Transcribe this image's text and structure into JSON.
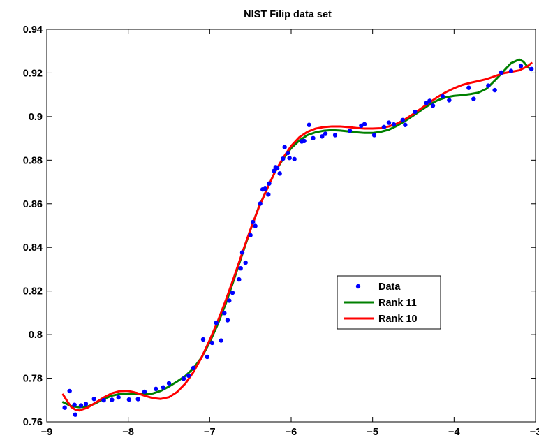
{
  "chart_data": {
    "type": "scatter",
    "title": "NIST Filip data set",
    "xlabel": "",
    "ylabel": "",
    "xlim": [
      -9,
      -3
    ],
    "ylim": [
      0.76,
      0.94
    ],
    "xticks": [
      -9,
      -8,
      -7,
      -6,
      -5,
      -4,
      -3
    ],
    "xtick_labels": [
      "−9",
      "−8",
      "−7",
      "−6",
      "−5",
      "−4",
      "−3"
    ],
    "yticks": [
      0.76,
      0.78,
      0.8,
      0.82,
      0.84,
      0.86,
      0.88,
      0.9,
      0.92,
      0.94
    ],
    "ytick_labels": [
      "0.76",
      "0.78",
      "0.8",
      "0.82",
      "0.84",
      "0.86",
      "0.88",
      "0.9",
      "0.92",
      "0.94"
    ],
    "grid": false,
    "legend_position": "center-right",
    "series": [
      {
        "name": "Data",
        "kind": "scatter",
        "color": "#0000ff",
        "points": [
          [
            -8.78,
            0.7665
          ],
          [
            -8.72,
            0.7741
          ],
          [
            -8.66,
            0.7678
          ],
          [
            -8.65,
            0.7633
          ],
          [
            -8.58,
            0.7675
          ],
          [
            -8.52,
            0.7682
          ],
          [
            -8.42,
            0.7705
          ],
          [
            -8.3,
            0.7699
          ],
          [
            -8.2,
            0.7701
          ],
          [
            -8.12,
            0.7712
          ],
          [
            -7.99,
            0.7702
          ],
          [
            -7.88,
            0.7704
          ],
          [
            -7.8,
            0.7738
          ],
          [
            -7.66,
            0.7751
          ],
          [
            -7.57,
            0.7758
          ],
          [
            -7.5,
            0.7777
          ],
          [
            -7.32,
            0.7798
          ],
          [
            -7.26,
            0.7812
          ],
          [
            -7.2,
            0.7847
          ],
          [
            -7.08,
            0.7978
          ],
          [
            -7.03,
            0.7898
          ],
          [
            -6.97,
            0.7962
          ],
          [
            -6.92,
            0.8054
          ],
          [
            -6.86,
            0.7973
          ],
          [
            -6.82,
            0.8099
          ],
          [
            -6.78,
            0.8066
          ],
          [
            -6.76,
            0.8156
          ],
          [
            -6.72,
            0.8192
          ],
          [
            -6.64,
            0.8253
          ],
          [
            -6.62,
            0.8304
          ],
          [
            -6.6,
            0.8377
          ],
          [
            -6.56,
            0.833
          ],
          [
            -6.5,
            0.8456
          ],
          [
            -6.47,
            0.8516
          ],
          [
            -6.44,
            0.8498
          ],
          [
            -6.38,
            0.8601
          ],
          [
            -6.35,
            0.8666
          ],
          [
            -6.32,
            0.8669
          ],
          [
            -6.28,
            0.8643
          ],
          [
            -6.27,
            0.8693
          ],
          [
            -6.21,
            0.8751
          ],
          [
            -6.19,
            0.8768
          ],
          [
            -6.17,
            0.8763
          ],
          [
            -6.14,
            0.8739
          ],
          [
            -6.1,
            0.8807
          ],
          [
            -6.08,
            0.886
          ],
          [
            -6.04,
            0.8833
          ],
          [
            -6.02,
            0.881
          ],
          [
            -5.96,
            0.8805
          ],
          [
            -5.87,
            0.8886
          ],
          [
            -5.84,
            0.8888
          ],
          [
            -5.78,
            0.8962
          ],
          [
            -5.73,
            0.8901
          ],
          [
            -5.62,
            0.8909
          ],
          [
            -5.58,
            0.8921
          ],
          [
            -5.46,
            0.8915
          ],
          [
            -5.28,
            0.8935
          ],
          [
            -5.14,
            0.8958
          ],
          [
            -5.1,
            0.8965
          ],
          [
            -4.98,
            0.8915
          ],
          [
            -4.86,
            0.8952
          ],
          [
            -4.8,
            0.8972
          ],
          [
            -4.74,
            0.8964
          ],
          [
            -4.63,
            0.8984
          ],
          [
            -4.6,
            0.8962
          ],
          [
            -4.48,
            0.9022
          ],
          [
            -4.34,
            0.9062
          ],
          [
            -4.3,
            0.9072
          ],
          [
            -4.26,
            0.905
          ],
          [
            -4.14,
            0.9092
          ],
          [
            -4.06,
            0.9075
          ],
          [
            -3.82,
            0.9132
          ],
          [
            -3.76,
            0.9081
          ],
          [
            -3.58,
            0.9142
          ],
          [
            -3.5,
            0.9121
          ],
          [
            -3.42,
            0.9202
          ],
          [
            -3.3,
            0.9209
          ],
          [
            -3.18,
            0.9232
          ],
          [
            -3.05,
            0.9218
          ]
        ]
      },
      {
        "name": "Rank 11",
        "kind": "line",
        "color": "#008000",
        "points": [
          [
            -8.8,
            0.769
          ],
          [
            -8.7,
            0.7672
          ],
          [
            -8.6,
            0.7667
          ],
          [
            -8.5,
            0.767
          ],
          [
            -8.4,
            0.7685
          ],
          [
            -8.3,
            0.7705
          ],
          [
            -8.2,
            0.772
          ],
          [
            -8.1,
            0.7728
          ],
          [
            -8.0,
            0.773
          ],
          [
            -7.9,
            0.7728
          ],
          [
            -7.8,
            0.7727
          ],
          [
            -7.7,
            0.773
          ],
          [
            -7.6,
            0.7742
          ],
          [
            -7.5,
            0.7762
          ],
          [
            -7.4,
            0.7785
          ],
          [
            -7.3,
            0.781
          ],
          [
            -7.2,
            0.7845
          ],
          [
            -7.1,
            0.7895
          ],
          [
            -7.0,
            0.7965
          ],
          [
            -6.9,
            0.8048
          ],
          [
            -6.8,
            0.8145
          ],
          [
            -6.7,
            0.8255
          ],
          [
            -6.6,
            0.8368
          ],
          [
            -6.5,
            0.848
          ],
          [
            -6.4,
            0.8582
          ],
          [
            -6.3,
            0.8665
          ],
          [
            -6.2,
            0.8745
          ],
          [
            -6.1,
            0.8805
          ],
          [
            -6.0,
            0.8855
          ],
          [
            -5.9,
            0.889
          ],
          [
            -5.8,
            0.8915
          ],
          [
            -5.7,
            0.8928
          ],
          [
            -5.6,
            0.8935
          ],
          [
            -5.5,
            0.8938
          ],
          [
            -5.4,
            0.8936
          ],
          [
            -5.3,
            0.8932
          ],
          [
            -5.2,
            0.8928
          ],
          [
            -5.1,
            0.8925
          ],
          [
            -5.0,
            0.8925
          ],
          [
            -4.9,
            0.893
          ],
          [
            -4.8,
            0.894
          ],
          [
            -4.7,
            0.8958
          ],
          [
            -4.6,
            0.898
          ],
          [
            -4.5,
            0.9005
          ],
          [
            -4.4,
            0.903
          ],
          [
            -4.3,
            0.9055
          ],
          [
            -4.2,
            0.9075
          ],
          [
            -4.1,
            0.9088
          ],
          [
            -4.0,
            0.9095
          ],
          [
            -3.9,
            0.9098
          ],
          [
            -3.8,
            0.9103
          ],
          [
            -3.7,
            0.911
          ],
          [
            -3.6,
            0.9128
          ],
          [
            -3.5,
            0.9165
          ],
          [
            -3.4,
            0.9205
          ],
          [
            -3.3,
            0.9245
          ],
          [
            -3.2,
            0.9262
          ],
          [
            -3.15,
            0.9252
          ],
          [
            -3.1,
            0.923
          ],
          [
            -3.05,
            0.9212
          ]
        ]
      },
      {
        "name": "Rank 10",
        "kind": "line",
        "color": "#ff0000",
        "points": [
          [
            -8.8,
            0.7725
          ],
          [
            -8.75,
            0.7695
          ],
          [
            -8.7,
            0.7668
          ],
          [
            -8.65,
            0.7656
          ],
          [
            -8.6,
            0.7652
          ],
          [
            -8.5,
            0.7665
          ],
          [
            -8.4,
            0.7688
          ],
          [
            -8.3,
            0.7712
          ],
          [
            -8.2,
            0.7731
          ],
          [
            -8.1,
            0.7741
          ],
          [
            -8.0,
            0.7742
          ],
          [
            -7.9,
            0.7733
          ],
          [
            -7.8,
            0.772
          ],
          [
            -7.7,
            0.7709
          ],
          [
            -7.6,
            0.7705
          ],
          [
            -7.5,
            0.7713
          ],
          [
            -7.4,
            0.7737
          ],
          [
            -7.3,
            0.7775
          ],
          [
            -7.2,
            0.7828
          ],
          [
            -7.1,
            0.7895
          ],
          [
            -7.0,
            0.7975
          ],
          [
            -6.9,
            0.8062
          ],
          [
            -6.8,
            0.816
          ],
          [
            -6.7,
            0.8265
          ],
          [
            -6.6,
            0.8375
          ],
          [
            -6.5,
            0.8482
          ],
          [
            -6.4,
            0.858
          ],
          [
            -6.3,
            0.8665
          ],
          [
            -6.2,
            0.8745
          ],
          [
            -6.1,
            0.881
          ],
          [
            -6.0,
            0.8865
          ],
          [
            -5.9,
            0.8905
          ],
          [
            -5.8,
            0.893
          ],
          [
            -5.7,
            0.8945
          ],
          [
            -5.6,
            0.8952
          ],
          [
            -5.5,
            0.8955
          ],
          [
            -5.4,
            0.8955
          ],
          [
            -5.3,
            0.8952
          ],
          [
            -5.2,
            0.8948
          ],
          [
            -5.1,
            0.8945
          ],
          [
            -5.0,
            0.8945
          ],
          [
            -4.9,
            0.8947
          ],
          [
            -4.8,
            0.8955
          ],
          [
            -4.7,
            0.8968
          ],
          [
            -4.6,
            0.8988
          ],
          [
            -4.5,
            0.9012
          ],
          [
            -4.4,
            0.9038
          ],
          [
            -4.3,
            0.9065
          ],
          [
            -4.2,
            0.909
          ],
          [
            -4.1,
            0.9112
          ],
          [
            -4.0,
            0.913
          ],
          [
            -3.9,
            0.9145
          ],
          [
            -3.8,
            0.9155
          ],
          [
            -3.7,
            0.9163
          ],
          [
            -3.6,
            0.9172
          ],
          [
            -3.5,
            0.9185
          ],
          [
            -3.4,
            0.9198
          ],
          [
            -3.3,
            0.9205
          ],
          [
            -3.2,
            0.9212
          ],
          [
            -3.1,
            0.923
          ],
          [
            -3.05,
            0.9245
          ]
        ]
      }
    ]
  }
}
